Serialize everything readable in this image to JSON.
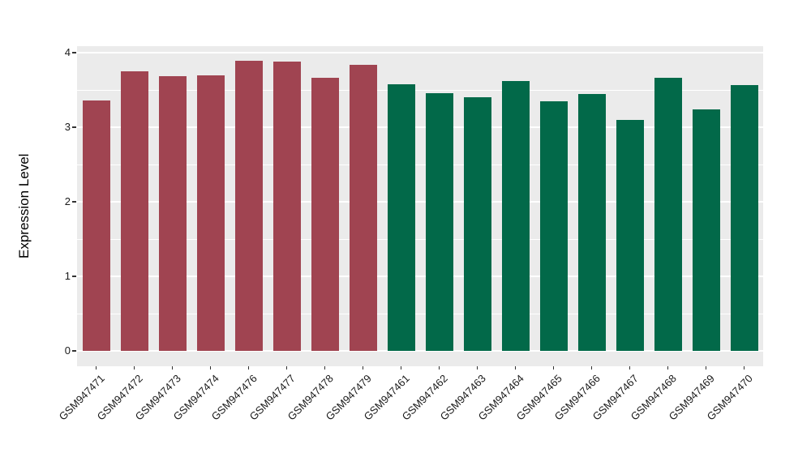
{
  "figure": {
    "background": "#FFFFFF",
    "panel_background": "#EBEBEB",
    "gridline_color": "#FFFFFF",
    "axis_tick_color": "#333333",
    "axis_text_color": "#1A1A1A",
    "axis_title_color": "#000000",
    "bar_color_left_group": "#A04451",
    "bar_color_right_group": "#026949"
  },
  "chart_data": {
    "type": "bar",
    "ylabel": "Expression Level",
    "xlabel": "",
    "ylim": [
      0,
      4.09
    ],
    "yticks": [
      0,
      1,
      2,
      3,
      4
    ],
    "grid": {
      "visible": true,
      "major_step": 1.0,
      "minor_step": 0.5
    },
    "legend": "none",
    "x_label_rotation_deg": 45,
    "bars": [
      {
        "label": "GSM947471",
        "value": 3.36,
        "color": "#A04451"
      },
      {
        "label": "GSM947472",
        "value": 3.75,
        "color": "#A04451"
      },
      {
        "label": "GSM947473",
        "value": 3.68,
        "color": "#A04451"
      },
      {
        "label": "GSM947474",
        "value": 3.7,
        "color": "#A04451"
      },
      {
        "label": "GSM947476",
        "value": 3.89,
        "color": "#A04451"
      },
      {
        "label": "GSM947477",
        "value": 3.88,
        "color": "#A04451"
      },
      {
        "label": "GSM947478",
        "value": 3.66,
        "color": "#A04451"
      },
      {
        "label": "GSM947479",
        "value": 3.84,
        "color": "#A04451"
      },
      {
        "label": "GSM947461",
        "value": 3.58,
        "color": "#026949"
      },
      {
        "label": "GSM947462",
        "value": 3.46,
        "color": "#026949"
      },
      {
        "label": "GSM947463",
        "value": 3.4,
        "color": "#026949"
      },
      {
        "label": "GSM947464",
        "value": 3.62,
        "color": "#026949"
      },
      {
        "label": "GSM947465",
        "value": 3.35,
        "color": "#026949"
      },
      {
        "label": "GSM947466",
        "value": 3.45,
        "color": "#026949"
      },
      {
        "label": "GSM947467",
        "value": 3.1,
        "color": "#026949"
      },
      {
        "label": "GSM947468",
        "value": 3.66,
        "color": "#026949"
      },
      {
        "label": "GSM947469",
        "value": 3.24,
        "color": "#026949"
      },
      {
        "label": "GSM947470",
        "value": 3.57,
        "color": "#026949"
      }
    ]
  }
}
